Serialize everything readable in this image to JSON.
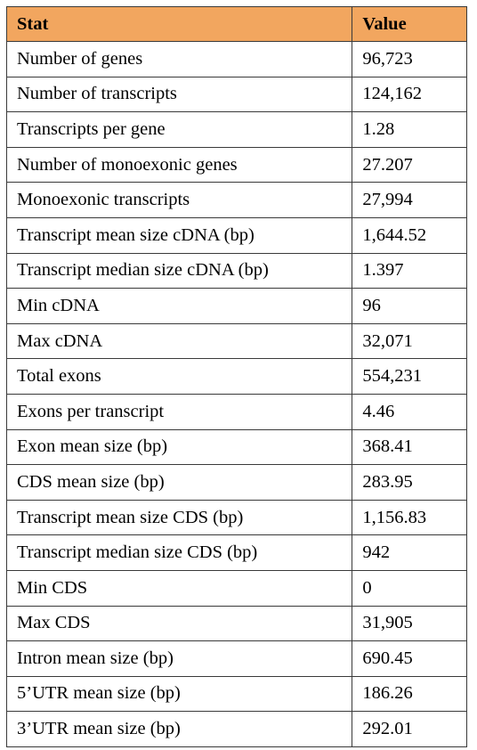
{
  "table": {
    "header_color": "#f2a65f",
    "columns": [
      "Stat",
      "Value"
    ],
    "rows": [
      [
        "Number of genes",
        "96,723"
      ],
      [
        "Number of transcripts",
        "124,162"
      ],
      [
        "Transcripts per gene",
        "1.28"
      ],
      [
        "Number of monoexonic genes",
        "27.207"
      ],
      [
        "Monoexonic transcripts",
        "27,994"
      ],
      [
        "Transcript mean size cDNA (bp)",
        "1,644.52"
      ],
      [
        "Transcript median size cDNA (bp)",
        "1.397"
      ],
      [
        "Min cDNA",
        "96"
      ],
      [
        "Max cDNA",
        "32,071"
      ],
      [
        "Total exons",
        "554,231"
      ],
      [
        "Exons per transcript",
        "4.46"
      ],
      [
        "Exon mean size (bp)",
        "368.41"
      ],
      [
        "CDS mean size (bp)",
        "283.95"
      ],
      [
        "Transcript mean size CDS (bp)",
        "1,156.83"
      ],
      [
        "Transcript median size CDS (bp)",
        "942"
      ],
      [
        "Min CDS",
        "0"
      ],
      [
        "Max CDS",
        "31,905"
      ],
      [
        "Intron mean size (bp)",
        "690.45"
      ],
      [
        "5’UTR mean size (bp)",
        "186.26"
      ],
      [
        "3’UTR mean size (bp)",
        "292.01"
      ]
    ]
  }
}
